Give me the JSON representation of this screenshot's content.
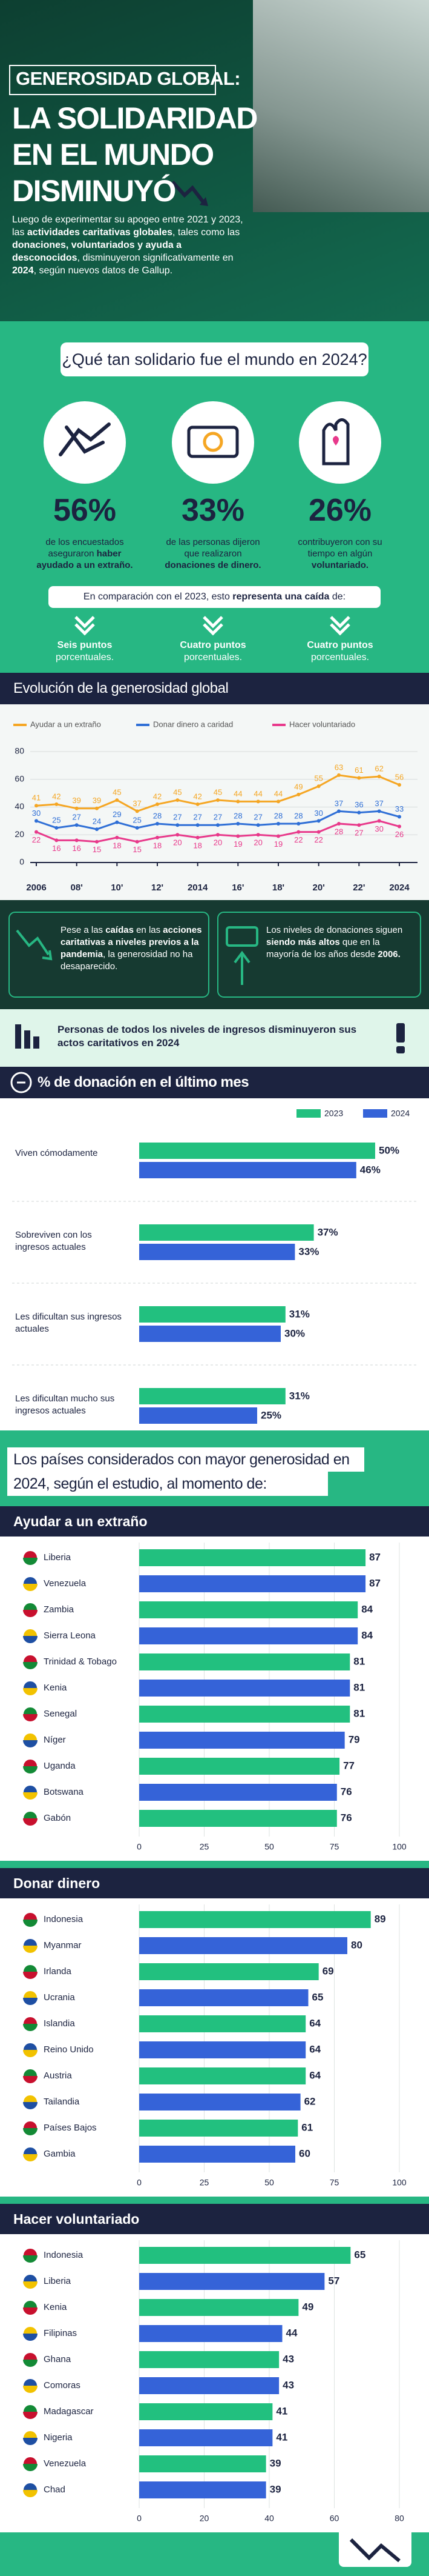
{
  "header": {
    "title_lines": [
      "GENEROSIDAD GLOBAL:",
      "LA SOLIDARIDAD",
      "EN EL MUNDO",
      "DISMINUYÓ"
    ],
    "intro": [
      {
        "text": "Luego de experimentar su apogeo entre 2021 y 2023, las ",
        "bold": false
      },
      {
        "text": "actividades caritativas globales",
        "bold": true
      },
      {
        "text": ", tales como las ",
        "bold": false
      },
      {
        "text": "donaciones, voluntariados y ayuda a desconocidos",
        "bold": true
      },
      {
        "text": ", disminuyeron significativamente en ",
        "bold": false
      },
      {
        "text": "2024",
        "bold": true
      },
      {
        "text": ", según nuevos datos de Gallup.",
        "bold": false
      }
    ]
  },
  "question": {
    "title": "¿Qué tan solidario fue el mundo en 2024?",
    "stats": [
      {
        "value": "56%",
        "text": [
          {
            "text": "de los encuestados aseguraron ",
            "bold": false
          },
          {
            "text": "haber ayudado a un extraño.",
            "bold": true
          }
        ]
      },
      {
        "value": "33%",
        "text": [
          {
            "text": "de las personas dijeron que realizaron ",
            "bold": false
          },
          {
            "text": "donaciones de dinero.",
            "bold": true
          }
        ]
      },
      {
        "value": "26%",
        "text": [
          {
            "text": "contribuyeron con su tiempo en algún ",
            "bold": false
          },
          {
            "text": "voluntariado.",
            "bold": true
          }
        ]
      }
    ],
    "comparison": [
      {
        "text": "En comparación con el 2023, esto ",
        "bold": false
      },
      {
        "text": "representa una caída",
        "bold": true
      },
      {
        "text": " de:",
        "bold": false
      }
    ],
    "drops": [
      [
        {
          "text": "Seis puntos",
          "bold": true
        },
        {
          "text": " porcentuales.",
          "bold": false
        }
      ],
      [
        {
          "text": "Cuatro puntos",
          "bold": true
        },
        {
          "text": " porcentuales.",
          "bold": false
        }
      ],
      [
        {
          "text": "Cuatro puntos",
          "bold": true
        },
        {
          "text": " porcentuales.",
          "bold": false
        }
      ]
    ]
  },
  "notes": [
    [
      {
        "text": "Pese a las ",
        "bold": false
      },
      {
        "text": "caídas",
        "bold": true
      },
      {
        "text": " en las ",
        "bold": false
      },
      {
        "text": "acciones caritativas a niveles previos a la pandemia",
        "bold": true
      },
      {
        "text": ", la generosidad no ha desaparecido.",
        "bold": false
      }
    ],
    [
      {
        "text": "Los niveles de donaciones siguen ",
        "bold": false
      },
      {
        "text": "siendo más altos",
        "bold": true
      },
      {
        "text": " que en la mayoría de los años desde ",
        "bold": false
      },
      {
        "text": "2006.",
        "bold": true
      }
    ]
  ],
  "banner": "Personas de todos los niveles de ingresos disminuyeron sus actos caritativos en 2024",
  "countries_heading": "Los países considerados con mayor generosidad en 2024, según el estudio, al momento de:",
  "chart_data": [
    {
      "type": "line",
      "title": "Evolución de la generosidad global",
      "x": [
        2006,
        2007,
        2008,
        2009,
        2010,
        2011,
        2012,
        2013,
        2014,
        2015,
        2016,
        2017,
        2018,
        2019,
        2020,
        2021,
        2022,
        2023,
        2024
      ],
      "series": [
        {
          "name": "Ayudar a un extraño",
          "color": "#f5a623",
          "values": [
            41,
            42,
            39,
            39,
            45,
            37,
            42,
            45,
            42,
            45,
            44,
            44,
            44,
            49,
            55,
            63,
            61,
            62,
            56
          ]
        },
        {
          "name": "Donar dinero a caridad",
          "color": "#2f6fd6",
          "values": [
            30,
            25,
            27,
            24,
            29,
            25,
            28,
            27,
            27,
            27,
            28,
            27,
            28,
            28,
            30,
            37,
            36,
            37,
            33
          ]
        },
        {
          "name": "Hacer voluntariado",
          "color": "#e8398b",
          "values": [
            22,
            16,
            16,
            15,
            18,
            15,
            18,
            20,
            18,
            20,
            19,
            20,
            19,
            22,
            22,
            28,
            27,
            30,
            26
          ]
        }
      ],
      "xlim": [
        2006,
        2024
      ],
      "xticks": [
        2006,
        {
          "value": 2008,
          "label": "08'"
        },
        {
          "value": 2010,
          "label": "10'"
        },
        {
          "value": 2012,
          "label": "12'"
        },
        2014,
        {
          "value": 2016,
          "label": "16'"
        },
        {
          "value": 2018,
          "label": "18'"
        },
        {
          "value": 2020,
          "label": "20'"
        },
        {
          "value": 2022,
          "label": "22'"
        },
        2024
      ],
      "ylim": [
        0,
        80
      ],
      "yticks": [
        0,
        20,
        40,
        60,
        80
      ],
      "grid": true
    },
    {
      "type": "grouped_hbar",
      "title": "% de donación en el último mes",
      "categories": [
        "Viven cómodamente",
        "Sobreviven con los ingresos actuales",
        "Les dificultan sus ingresos actuales",
        "Les dificultan mucho sus ingresos actuales"
      ],
      "series": [
        {
          "name": "2023",
          "color": "#22c07f",
          "values": [
            50,
            37,
            31,
            31
          ],
          "value_labels": [
            "50%",
            "37%",
            "31%",
            "31%"
          ]
        },
        {
          "name": "2024",
          "color": "#3563d8",
          "values": [
            46,
            33,
            30,
            25
          ],
          "value_labels": [
            "46%",
            "33%",
            "30%",
            "25%"
          ]
        }
      ]
    },
    {
      "type": "hbar",
      "title": "Ayudar a un extraño",
      "categories": [
        "Liberia",
        "Venezuela",
        "Zambia",
        "Sierra Leona",
        "Trinidad & Tobago",
        "Kenia",
        "Senegal",
        "Níger",
        "Uganda",
        "Botswana",
        "Gabón"
      ],
      "values": [
        87,
        87,
        84,
        84,
        81,
        81,
        81,
        79,
        77,
        76,
        76
      ],
      "colors": [
        "#22c07f",
        "#3563d8",
        "#22c07f",
        "#3563d8",
        "#22c07f",
        "#3563d8",
        "#22c07f",
        "#3563d8",
        "#22c07f",
        "#3563d8",
        "#22c07f"
      ],
      "xlim": [
        0,
        100
      ],
      "xticks": [
        0,
        25,
        50,
        75,
        100
      ],
      "grid": true
    },
    {
      "type": "hbar",
      "title": "Donar dinero",
      "categories": [
        "Indonesia",
        "Myanmar",
        "Irlanda",
        "Ucrania",
        "Islandia",
        "Reino Unido",
        "Austria",
        "Tailandia",
        "Países Bajos",
        "Gambia"
      ],
      "values": [
        89,
        80,
        69,
        65,
        64,
        64,
        64,
        62,
        61,
        60
      ],
      "colors": [
        "#22c07f",
        "#3563d8",
        "#22c07f",
        "#3563d8",
        "#22c07f",
        "#3563d8",
        "#22c07f",
        "#3563d8",
        "#22c07f",
        "#3563d8"
      ],
      "xlim": [
        0,
        100
      ],
      "xticks": [
        0,
        25,
        50,
        75,
        100
      ],
      "grid": true
    },
    {
      "type": "hbar",
      "title": "Hacer voluntariado",
      "categories": [
        "Indonesia",
        "Liberia",
        "Kenia",
        "Filipinas",
        "Ghana",
        "Comoras",
        "Madagascar",
        "Nigeria",
        "Venezuela",
        "Chad"
      ],
      "values": [
        65,
        57,
        49,
        44,
        43,
        43,
        41,
        41,
        39,
        39
      ],
      "colors": [
        "#22c07f",
        "#3563d8",
        "#22c07f",
        "#3563d8",
        "#22c07f",
        "#3563d8",
        "#22c07f",
        "#3563d8",
        "#22c07f",
        "#3563d8"
      ],
      "xlim": [
        0,
        80
      ],
      "xticks": [
        0,
        20,
        40,
        60,
        80
      ],
      "grid": true
    }
  ]
}
